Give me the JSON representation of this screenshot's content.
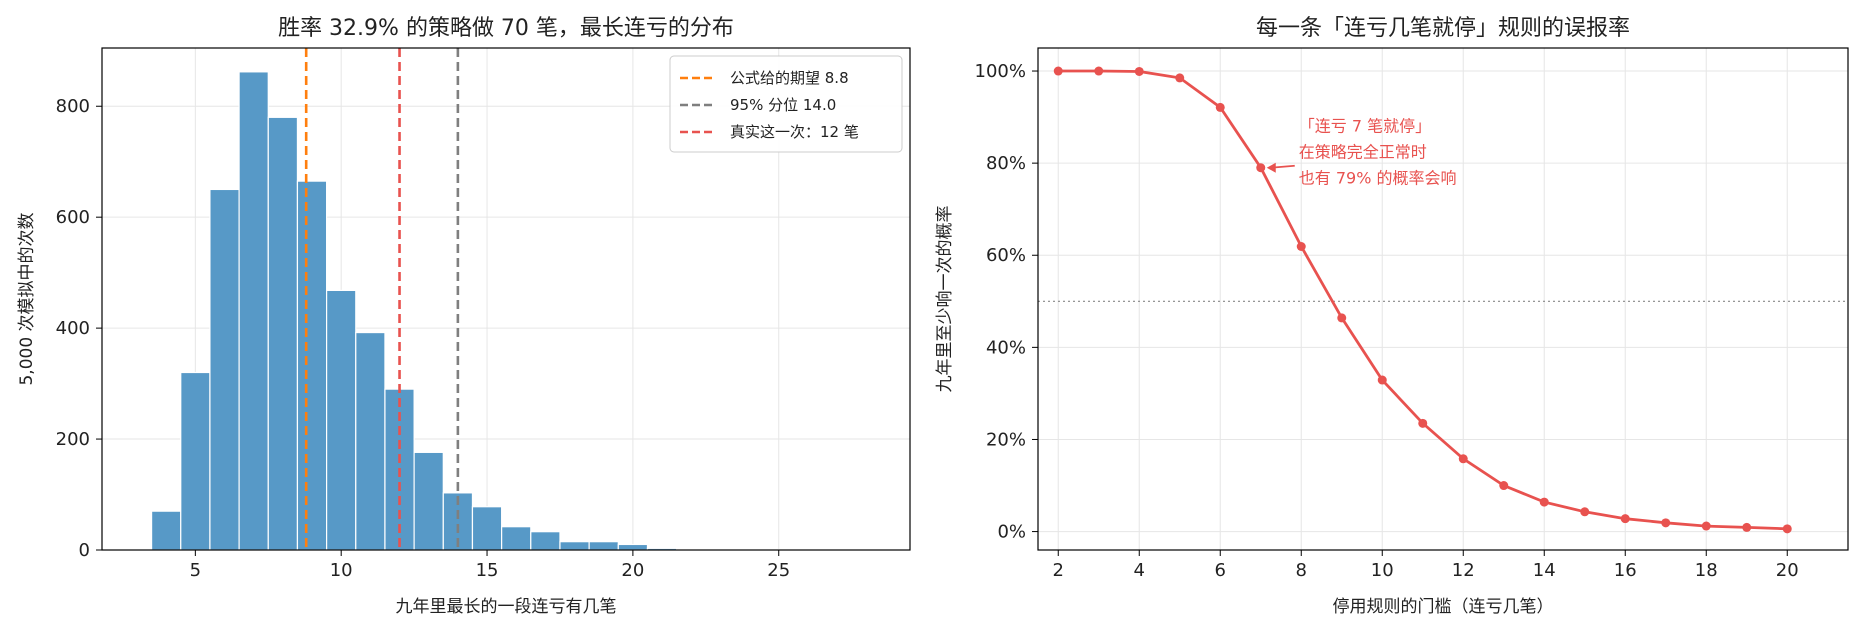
{
  "chart_data": [
    {
      "type": "bar",
      "title": "胜率 32.9% 的策略做 70 笔，最长连亏的分布",
      "xlabel": "九年里最长的一段连亏有几笔",
      "ylabel": "5,000 次模拟中的次数",
      "xlim": [
        1.8,
        29.5
      ],
      "ylim": [
        0,
        905
      ],
      "xticks": [
        5,
        10,
        15,
        20,
        25
      ],
      "yticks": [
        0,
        200,
        400,
        600,
        800
      ],
      "grid": true,
      "bar_color": "#5799c7",
      "categories": [
        4,
        5,
        6,
        7,
        8,
        9,
        10,
        11,
        12,
        13,
        14,
        15,
        16,
        17,
        18,
        19,
        20,
        21,
        22,
        23,
        24,
        25
      ],
      "values": [
        70,
        320,
        650,
        862,
        780,
        665,
        468,
        392,
        290,
        176,
        103,
        78,
        42,
        33,
        15,
        15,
        10,
        3,
        2,
        1,
        1,
        1
      ],
      "reference_lines": [
        {
          "x": 8.8,
          "label": "公式给的期望 8.8",
          "color": "#ff7f0e"
        },
        {
          "x": 14.0,
          "label": "95% 分位 14.0",
          "color": "#7f7f7f"
        },
        {
          "x": 12,
          "label": "真实这一次：12 笔",
          "color": "#e8524f"
        }
      ],
      "legend_position": "upper-right"
    },
    {
      "type": "line",
      "title": "每一条「连亏几笔就停」规则的误报率",
      "xlabel": "停用规则的门槛（连亏几笔）",
      "ylabel": "九年里至少响一次的概率",
      "xlim": [
        1.5,
        21.5
      ],
      "ylim": [
        -0.04,
        1.05
      ],
      "xticks": [
        2,
        4,
        6,
        8,
        10,
        12,
        14,
        16,
        18,
        20
      ],
      "yticks": [
        0,
        0.2,
        0.4,
        0.6,
        0.8,
        1.0
      ],
      "ytick_labels": [
        "0%",
        "20%",
        "40%",
        "60%",
        "80%",
        "100%"
      ],
      "grid": true,
      "color": "#e8524f",
      "x": [
        2,
        3,
        4,
        5,
        6,
        7,
        8,
        9,
        10,
        11,
        12,
        13,
        14,
        15,
        16,
        17,
        18,
        19,
        20
      ],
      "y": [
        1.0,
        1.0,
        0.999,
        0.985,
        0.921,
        0.79,
        0.619,
        0.464,
        0.329,
        0.235,
        0.158,
        0.1,
        0.064,
        0.043,
        0.028,
        0.019,
        0.012,
        0.009,
        0.006
      ],
      "hline": {
        "y": 0.5,
        "color": "#888888",
        "style": "dotted"
      },
      "annotation": {
        "point": [
          7,
          0.79
        ],
        "lines": [
          "「连亏 7 笔就停」",
          "在策略完全正常时",
          "也有 79% 的概率会响"
        ]
      }
    }
  ]
}
